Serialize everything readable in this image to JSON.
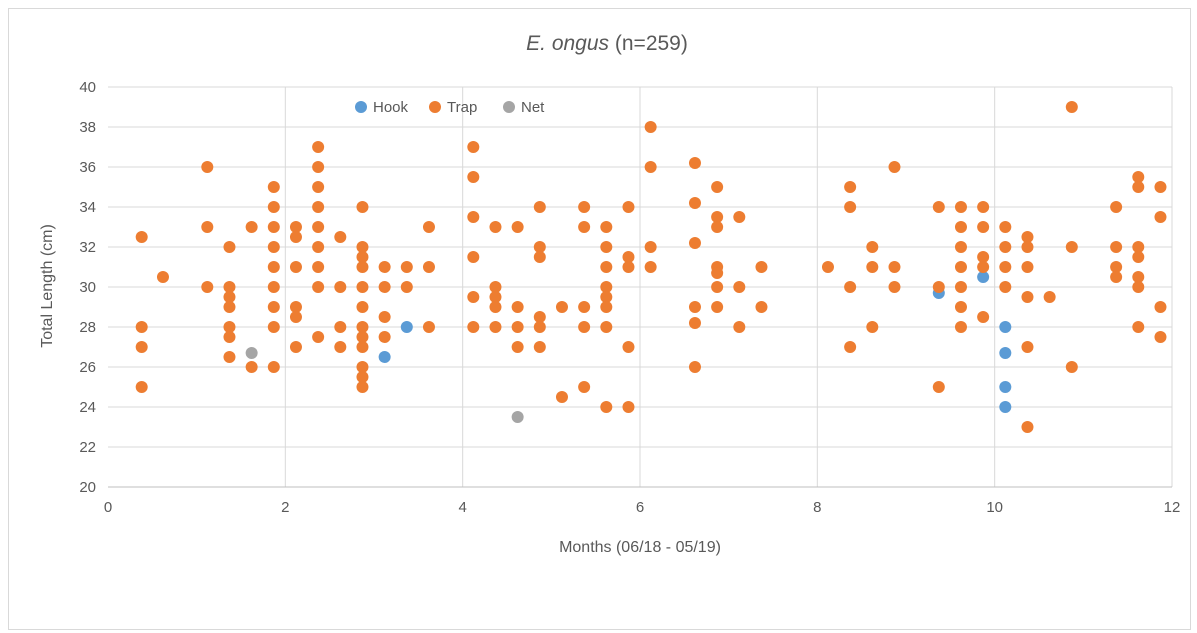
{
  "chart_data": {
    "type": "scatter",
    "title_italic": "E. ongus",
    "title_rest": " (n=259)",
    "xlabel": "Months (06/18 - 05/19)",
    "ylabel": "Total Length (cm)",
    "xlim": [
      0,
      12
    ],
    "ylim": [
      20,
      40
    ],
    "xticks": [
      0,
      2,
      4,
      6,
      8,
      10,
      12
    ],
    "yticks": [
      20,
      22,
      24,
      26,
      28,
      30,
      32,
      34,
      36,
      38,
      40
    ],
    "legend_position": "top-left",
    "grid": true,
    "series": [
      {
        "name": "Hook",
        "color": "#5B9BD5",
        "points": [
          [
            3.12,
            26.5
          ],
          [
            3.37,
            28.0
          ],
          [
            9.37,
            29.7
          ],
          [
            9.87,
            30.5
          ],
          [
            10.12,
            28.0
          ],
          [
            10.12,
            26.7
          ],
          [
            10.12,
            25.0
          ],
          [
            10.12,
            24.0
          ]
        ]
      },
      {
        "name": "Trap",
        "color": "#ED7D31",
        "points": [
          [
            0.38,
            32.5
          ],
          [
            0.38,
            28.0
          ],
          [
            0.38,
            27.0
          ],
          [
            0.38,
            25.0
          ],
          [
            0.62,
            30.5
          ],
          [
            1.12,
            36.0
          ],
          [
            1.12,
            33.0
          ],
          [
            1.12,
            30.0
          ],
          [
            1.37,
            32.0
          ],
          [
            1.37,
            30.0
          ],
          [
            1.37,
            29.5
          ],
          [
            1.37,
            29.0
          ],
          [
            1.37,
            28.0
          ],
          [
            1.37,
            27.5
          ],
          [
            1.37,
            26.5
          ],
          [
            1.62,
            33.0
          ],
          [
            1.62,
            26.0
          ],
          [
            1.87,
            35.0
          ],
          [
            1.87,
            34.0
          ],
          [
            1.87,
            33.0
          ],
          [
            1.87,
            32.0
          ],
          [
            1.87,
            31.0
          ],
          [
            1.87,
            30.0
          ],
          [
            1.87,
            29.0
          ],
          [
            1.87,
            28.0
          ],
          [
            1.87,
            26.0
          ],
          [
            2.12,
            33.0
          ],
          [
            2.12,
            32.5
          ],
          [
            2.12,
            31.0
          ],
          [
            2.12,
            29.0
          ],
          [
            2.12,
            28.5
          ],
          [
            2.12,
            27.0
          ],
          [
            2.37,
            37.0
          ],
          [
            2.37,
            36.0
          ],
          [
            2.37,
            35.0
          ],
          [
            2.37,
            34.0
          ],
          [
            2.37,
            33.0
          ],
          [
            2.37,
            32.0
          ],
          [
            2.37,
            31.0
          ],
          [
            2.37,
            30.0
          ],
          [
            2.37,
            27.5
          ],
          [
            2.62,
            32.5
          ],
          [
            2.62,
            30.0
          ],
          [
            2.62,
            28.0
          ],
          [
            2.62,
            27.0
          ],
          [
            2.87,
            34.0
          ],
          [
            2.87,
            32.0
          ],
          [
            2.87,
            31.5
          ],
          [
            2.87,
            31.0
          ],
          [
            2.87,
            30.0
          ],
          [
            2.87,
            29.0
          ],
          [
            2.87,
            28.0
          ],
          [
            2.87,
            27.5
          ],
          [
            2.87,
            27.0
          ],
          [
            2.87,
            26.0
          ],
          [
            2.87,
            25.5
          ],
          [
            2.87,
            25.0
          ],
          [
            3.12,
            31.0
          ],
          [
            3.12,
            30.0
          ],
          [
            3.12,
            28.5
          ],
          [
            3.12,
            27.5
          ],
          [
            3.37,
            31.0
          ],
          [
            3.37,
            30.0
          ],
          [
            3.62,
            33.0
          ],
          [
            3.62,
            31.0
          ],
          [
            3.62,
            28.0
          ],
          [
            4.12,
            37.0
          ],
          [
            4.12,
            35.5
          ],
          [
            4.12,
            33.5
          ],
          [
            4.12,
            31.5
          ],
          [
            4.12,
            29.5
          ],
          [
            4.12,
            28.0
          ],
          [
            4.37,
            33.0
          ],
          [
            4.37,
            30.0
          ],
          [
            4.37,
            29.5
          ],
          [
            4.37,
            29.0
          ],
          [
            4.37,
            28.0
          ],
          [
            4.62,
            33.0
          ],
          [
            4.62,
            29.0
          ],
          [
            4.62,
            28.0
          ],
          [
            4.62,
            27.0
          ],
          [
            4.87,
            34.0
          ],
          [
            4.87,
            32.0
          ],
          [
            4.87,
            31.5
          ],
          [
            4.87,
            28.5
          ],
          [
            4.87,
            28.0
          ],
          [
            4.87,
            27.0
          ],
          [
            5.12,
            29.0
          ],
          [
            5.12,
            24.5
          ],
          [
            5.37,
            34.0
          ],
          [
            5.37,
            33.0
          ],
          [
            5.37,
            29.0
          ],
          [
            5.37,
            28.0
          ],
          [
            5.37,
            25.0
          ],
          [
            5.62,
            33.0
          ],
          [
            5.62,
            32.0
          ],
          [
            5.62,
            31.0
          ],
          [
            5.62,
            30.0
          ],
          [
            5.62,
            29.5
          ],
          [
            5.62,
            29.0
          ],
          [
            5.62,
            28.0
          ],
          [
            5.62,
            24.0
          ],
          [
            5.87,
            34.0
          ],
          [
            5.87,
            31.5
          ],
          [
            5.87,
            31.0
          ],
          [
            5.87,
            27.0
          ],
          [
            5.87,
            24.0
          ],
          [
            6.12,
            38.0
          ],
          [
            6.12,
            36.0
          ],
          [
            6.12,
            32.0
          ],
          [
            6.12,
            31.0
          ],
          [
            6.62,
            36.2
          ],
          [
            6.62,
            34.2
          ],
          [
            6.62,
            32.2
          ],
          [
            6.62,
            29.0
          ],
          [
            6.62,
            28.2
          ],
          [
            6.62,
            26.0
          ],
          [
            6.87,
            35.0
          ],
          [
            6.87,
            33.5
          ],
          [
            6.87,
            33.0
          ],
          [
            6.87,
            31.0
          ],
          [
            6.87,
            30.7
          ],
          [
            6.87,
            30.0
          ],
          [
            6.87,
            29.0
          ],
          [
            7.12,
            33.5
          ],
          [
            7.12,
            30.0
          ],
          [
            7.12,
            28.0
          ],
          [
            7.37,
            31.0
          ],
          [
            7.37,
            29.0
          ],
          [
            8.12,
            31.0
          ],
          [
            8.37,
            35.0
          ],
          [
            8.37,
            34.0
          ],
          [
            8.37,
            30.0
          ],
          [
            8.37,
            27.0
          ],
          [
            8.62,
            32.0
          ],
          [
            8.62,
            31.0
          ],
          [
            8.62,
            28.0
          ],
          [
            8.87,
            36.0
          ],
          [
            8.87,
            31.0
          ],
          [
            8.87,
            30.0
          ],
          [
            9.37,
            34.0
          ],
          [
            9.37,
            30.0
          ],
          [
            9.37,
            25.0
          ],
          [
            9.62,
            34.0
          ],
          [
            9.62,
            33.0
          ],
          [
            9.62,
            32.0
          ],
          [
            9.62,
            31.0
          ],
          [
            9.62,
            30.0
          ],
          [
            9.62,
            29.0
          ],
          [
            9.62,
            28.0
          ],
          [
            9.87,
            34.0
          ],
          [
            9.87,
            33.0
          ],
          [
            9.87,
            31.5
          ],
          [
            9.87,
            31.0
          ],
          [
            9.87,
            28.5
          ],
          [
            10.12,
            33.0
          ],
          [
            10.12,
            32.0
          ],
          [
            10.12,
            31.0
          ],
          [
            10.12,
            30.0
          ],
          [
            10.37,
            32.5
          ],
          [
            10.37,
            32.0
          ],
          [
            10.37,
            31.0
          ],
          [
            10.37,
            29.5
          ],
          [
            10.37,
            27.0
          ],
          [
            10.37,
            23.0
          ],
          [
            10.62,
            29.5
          ],
          [
            10.87,
            39.0
          ],
          [
            10.87,
            32.0
          ],
          [
            10.87,
            26.0
          ],
          [
            11.37,
            34.0
          ],
          [
            11.37,
            32.0
          ],
          [
            11.37,
            31.0
          ],
          [
            11.37,
            30.5
          ],
          [
            11.62,
            35.5
          ],
          [
            11.62,
            35.0
          ],
          [
            11.62,
            32.0
          ],
          [
            11.62,
            31.5
          ],
          [
            11.62,
            30.5
          ],
          [
            11.62,
            30.0
          ],
          [
            11.62,
            28.0
          ],
          [
            11.87,
            35.0
          ],
          [
            11.87,
            33.5
          ],
          [
            11.87,
            29.0
          ],
          [
            11.87,
            27.5
          ]
        ]
      },
      {
        "name": "Net",
        "color": "#A5A5A5",
        "points": [
          [
            1.62,
            26.7
          ],
          [
            4.62,
            23.5
          ]
        ]
      }
    ]
  }
}
